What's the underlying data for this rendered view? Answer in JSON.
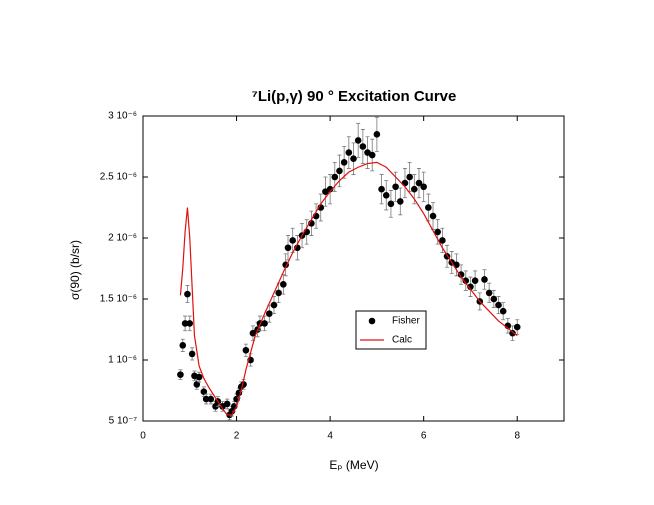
{
  "chart_data": {
    "type": "scatter",
    "title": "⁷Li(p,γ) 90 ° Excitation Curve",
    "xlabel": "Eₚ (MeV)",
    "ylabel": "σ(90) (b/sr)",
    "xlim": [
      0,
      9
    ],
    "ylim": [
      5e-07,
      3e-06
    ],
    "xticks": [
      0,
      2,
      4,
      6,
      8
    ],
    "yticks": [
      {
        "value": 5e-07,
        "label": "5 10⁻⁷"
      },
      {
        "value": 1e-06,
        "label": "1 10⁻⁶"
      },
      {
        "value": 1.5e-06,
        "label": "1.5 10⁻⁶"
      },
      {
        "value": 2e-06,
        "label": "2 10⁻⁶"
      },
      {
        "value": 2.5e-06,
        "label": "2.5 10⁻⁶"
      },
      {
        "value": 3e-06,
        "label": "3 10⁻⁶"
      }
    ],
    "grid": false,
    "legend": "center",
    "series": [
      {
        "name": "Fisher",
        "type": "scatter",
        "color": "#000000",
        "x": [
          0.8,
          0.85,
          0.9,
          0.95,
          1.0,
          1.05,
          1.1,
          1.15,
          1.2,
          1.3,
          1.35,
          1.45,
          1.55,
          1.6,
          1.7,
          1.8,
          1.85,
          1.9,
          1.95,
          2.0,
          2.05,
          2.1,
          2.15,
          2.2,
          2.3,
          2.35,
          2.45,
          2.5,
          2.6,
          2.7,
          2.8,
          2.9,
          3.0,
          3.05,
          3.1,
          3.2,
          3.3,
          3.4,
          3.5,
          3.6,
          3.7,
          3.8,
          3.9,
          4.0,
          4.1,
          4.2,
          4.3,
          4.4,
          4.5,
          4.6,
          4.7,
          4.8,
          4.9,
          5.0,
          5.1,
          5.2,
          5.3,
          5.4,
          5.5,
          5.6,
          5.7,
          5.8,
          5.9,
          6.0,
          6.1,
          6.2,
          6.3,
          6.4,
          6.5,
          6.6,
          6.7,
          6.8,
          6.9,
          7.0,
          7.1,
          7.2,
          7.3,
          7.4,
          7.5,
          7.6,
          7.7,
          7.8,
          7.9,
          8.0
        ],
        "values": [
          8.8e-07,
          1.12e-06,
          1.3e-06,
          1.54e-06,
          1.3e-06,
          1.05e-06,
          8.7e-07,
          8e-07,
          8.6e-07,
          7.4e-07,
          6.8e-07,
          6.8e-07,
          6.2e-07,
          6.6e-07,
          6.2e-07,
          6.4e-07,
          5.5e-07,
          5.8e-07,
          6.2e-07,
          6.8e-07,
          7.3e-07,
          7.8e-07,
          8e-07,
          1.08e-06,
          1e-06,
          1.22e-06,
          1.25e-06,
          1.3e-06,
          1.3e-06,
          1.38e-06,
          1.45e-06,
          1.55e-06,
          1.62e-06,
          1.78e-06,
          1.92e-06,
          1.98e-06,
          1.92e-06,
          2.02e-06,
          2.05e-06,
          2.12e-06,
          2.18e-06,
          2.25e-06,
          2.38e-06,
          2.4e-06,
          2.5e-06,
          2.55e-06,
          2.62e-06,
          2.7e-06,
          2.65e-06,
          2.8e-06,
          2.75e-06,
          2.7e-06,
          2.68e-06,
          2.85e-06,
          2.4e-06,
          2.35e-06,
          2.28e-06,
          2.42e-06,
          2.3e-06,
          2.45e-06,
          2.5e-06,
          2.4e-06,
          2.45e-06,
          2.42e-06,
          2.25e-06,
          2.18e-06,
          2.05e-06,
          1.98e-06,
          1.85e-06,
          1.8e-06,
          1.78e-06,
          1.7e-06,
          1.65e-06,
          1.6e-06,
          1.65e-06,
          1.48e-06,
          1.66e-06,
          1.55e-06,
          1.5e-06,
          1.45e-06,
          1.4e-06,
          1.28e-06,
          1.22e-06,
          1.27e-06
        ],
        "errors": [
          4e-08,
          5e-08,
          6e-08,
          7e-08,
          6e-08,
          5e-08,
          4e-08,
          4e-08,
          4e-08,
          4e-08,
          4e-08,
          4e-08,
          4e-08,
          4e-08,
          4e-08,
          4e-08,
          4e-08,
          4e-08,
          4e-08,
          4e-08,
          4e-08,
          4e-08,
          4e-08,
          5e-08,
          5e-08,
          6e-08,
          6e-08,
          6e-08,
          6e-08,
          7e-08,
          7e-08,
          8e-08,
          8e-08,
          9e-08,
          1e-07,
          1e-07,
          1e-07,
          1e-07,
          1e-07,
          1e-07,
          1e-07,
          1.1e-07,
          1.2e-07,
          1.2e-07,
          1.2e-07,
          1.3e-07,
          1.3e-07,
          1.3e-07,
          1.3e-07,
          1.4e-07,
          1.4e-07,
          1.3e-07,
          1.3e-07,
          1.4e-07,
          1.2e-07,
          1.2e-07,
          1.1e-07,
          1.2e-07,
          1.1e-07,
          1.2e-07,
          1.2e-07,
          1.2e-07,
          1.2e-07,
          1.2e-07,
          1.1e-07,
          1.1e-07,
          1e-07,
          1e-07,
          9e-08,
          9e-08,
          9e-08,
          8e-08,
          8e-08,
          8e-08,
          8e-08,
          7e-08,
          8e-08,
          8e-08,
          7e-08,
          7e-08,
          7e-08,
          6e-08,
          6e-08,
          6e-08
        ]
      },
      {
        "name": "Calc",
        "type": "line",
        "color": "#e01010",
        "x": [
          0.8,
          0.85,
          0.9,
          0.95,
          1.0,
          1.05,
          1.1,
          1.2,
          1.3,
          1.4,
          1.5,
          1.6,
          1.7,
          1.8,
          1.9,
          2.0,
          2.1,
          2.2,
          2.4,
          2.6,
          2.8,
          3.0,
          3.2,
          3.4,
          3.6,
          3.8,
          4.0,
          4.2,
          4.4,
          4.6,
          4.8,
          5.0,
          5.2,
          5.4,
          5.6,
          5.8,
          6.0,
          6.2,
          6.4,
          6.6,
          6.8,
          7.0,
          7.2,
          7.4,
          7.6,
          7.8,
          8.0
        ],
        "values": [
          1.53e-06,
          1.75e-06,
          2.05e-06,
          2.25e-06,
          2e-06,
          1.6e-06,
          1.2e-06,
          9.5e-07,
          8.5e-07,
          7.8e-07,
          7.2e-07,
          6.6e-07,
          6e-07,
          5.5e-07,
          5.5e-07,
          6.2e-07,
          7.5e-07,
          9.2e-07,
          1.2e-06,
          1.38e-06,
          1.55e-06,
          1.72e-06,
          1.88e-06,
          2.02e-06,
          2.15e-06,
          2.28e-06,
          2.38e-06,
          2.47e-06,
          2.54e-06,
          2.58e-06,
          2.61e-06,
          2.62e-06,
          2.58e-06,
          2.5e-06,
          2.42e-06,
          2.32e-06,
          2.2e-06,
          2.06e-06,
          1.92e-06,
          1.8e-06,
          1.68e-06,
          1.58e-06,
          1.48e-06,
          1.4e-06,
          1.32e-06,
          1.26e-06,
          1.2e-06
        ]
      }
    ]
  }
}
